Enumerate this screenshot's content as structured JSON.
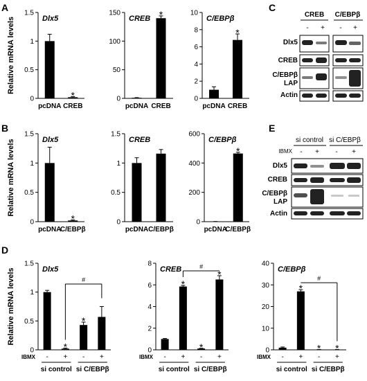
{
  "panels": [
    {
      "letter": "A"
    },
    {
      "letter": "B"
    },
    {
      "letter": "C"
    },
    {
      "letter": "D"
    },
    {
      "letter": "E"
    }
  ],
  "ylabel": "Relative mRNA levels",
  "chart_data": [
    {
      "panel": "A",
      "type": "bar",
      "title": "Dlx5",
      "categories": [
        "pcDNA",
        "CREB"
      ],
      "values": [
        1.0,
        0.02
      ],
      "errors": [
        0.12,
        0.01
      ],
      "ylim": [
        0,
        1.5
      ],
      "yticks": [
        "0",
        "0.5",
        "1",
        "1.5"
      ],
      "ylabel": "Relative mRNA levels",
      "stars": [
        "",
        "*"
      ],
      "bracket": null
    },
    {
      "panel": "A",
      "type": "bar",
      "title": "CREB",
      "categories": [
        "pcDNA",
        "CREB"
      ],
      "values": [
        1,
        140
      ],
      "errors": [
        0.3,
        4
      ],
      "ylim": [
        0,
        150
      ],
      "yticks": [
        "0",
        "50",
        "100",
        "150"
      ],
      "ylabel": "",
      "stars": [
        "",
        "*"
      ],
      "bracket": null
    },
    {
      "panel": "A",
      "type": "bar",
      "title": "C/EBPβ",
      "categories": [
        "pcDNA",
        "CREB"
      ],
      "values": [
        1.0,
        6.8
      ],
      "errors": [
        0.35,
        0.7
      ],
      "ylim": [
        0,
        10
      ],
      "yticks": [
        "0",
        "2",
        "4",
        "6",
        "8",
        "10"
      ],
      "ylabel": "",
      "stars": [
        "",
        "*"
      ],
      "bracket": null
    },
    {
      "panel": "B",
      "type": "bar",
      "title": "Dlx5",
      "categories": [
        "pcDNA",
        "C/EBPβ"
      ],
      "values": [
        1.0,
        0.02
      ],
      "errors": [
        0.27,
        0.01
      ],
      "ylim": [
        0,
        1.5
      ],
      "yticks": [
        "0",
        "0.5",
        "1",
        "1.5"
      ],
      "ylabel": "Relative mRNA levels",
      "stars": [
        "",
        "*"
      ],
      "bracket": null
    },
    {
      "panel": "B",
      "type": "bar",
      "title": "CREB",
      "categories": [
        "pcDNA",
        "C/EBPβ"
      ],
      "values": [
        1.0,
        1.16
      ],
      "errors": [
        0.09,
        0.07
      ],
      "ylim": [
        0,
        1.5
      ],
      "yticks": [
        "0",
        "0.5",
        "1",
        "1.5"
      ],
      "ylabel": "",
      "stars": [
        "",
        ""
      ],
      "bracket": null
    },
    {
      "panel": "B",
      "type": "bar",
      "title": "C/EBPβ",
      "categories": [
        "pcDNA",
        "C/EBPβ"
      ],
      "values": [
        1,
        465
      ],
      "errors": [
        0.5,
        8
      ],
      "ylim": [
        0,
        600
      ],
      "yticks": [
        "0",
        "200",
        "400",
        "600"
      ],
      "ylabel": "",
      "stars": [
        "",
        "*"
      ],
      "bracket": null
    },
    {
      "panel": "D",
      "type": "bar",
      "title": "Dlx5",
      "categories": [
        "-",
        "+",
        "-",
        "+"
      ],
      "values": [
        1.0,
        0.02,
        0.43,
        0.57
      ],
      "errors": [
        0.03,
        0.01,
        0.05,
        0.18
      ],
      "ylim": [
        0,
        1.5
      ],
      "yticks": [
        "0",
        "0.5",
        "1",
        "1.5"
      ],
      "ylabel": "Relative mRNA levels",
      "treatment": "IBMX",
      "groups": [
        "si control",
        "si C/EBPβ"
      ],
      "stars": [
        "",
        "*",
        "*",
        ""
      ],
      "bracket": {
        "from": 1,
        "to": 3,
        "level": 1.14,
        "label": "#"
      }
    },
    {
      "panel": "D",
      "type": "bar",
      "title": "CREB",
      "categories": [
        "-",
        "+",
        "-",
        "+"
      ],
      "values": [
        1.0,
        5.85,
        0.12,
        6.5
      ],
      "errors": [
        0.05,
        0.1,
        0.02,
        0.35
      ],
      "ylim": [
        0,
        8
      ],
      "yticks": [
        "0",
        "2",
        "4",
        "6",
        "8"
      ],
      "ylabel": "",
      "treatment": "IBMX",
      "groups": [
        "si control",
        "si C/EBPβ"
      ],
      "stars": [
        "",
        "*",
        "*",
        "*"
      ],
      "bracket": {
        "from": 1,
        "to": 3,
        "level": 7.3,
        "label": "#"
      }
    },
    {
      "panel": "D",
      "type": "bar",
      "title": "C/EBPβ",
      "categories": [
        "-",
        "+",
        "-",
        "+"
      ],
      "values": [
        1.0,
        27,
        0.1,
        0.1
      ],
      "errors": [
        0.3,
        0.8,
        0.05,
        0.05
      ],
      "ylim": [
        0,
        40
      ],
      "yticks": [
        "0",
        "10",
        "20",
        "30",
        "40"
      ],
      "ylabel": "",
      "treatment": "IBMX",
      "groups": [
        "si control",
        "si C/EBPβ"
      ],
      "stars": [
        "",
        "*",
        "*",
        "*"
      ],
      "bracket": {
        "from": 1,
        "to": 3,
        "level": 31,
        "label": "#"
      }
    }
  ],
  "blot_c": {
    "columns": [
      "CREB",
      "C/EBPβ"
    ],
    "treatment_signs": [
      "-",
      "+",
      "-",
      "+"
    ],
    "rows": [
      "Dlx5",
      "CREB",
      "C/EBPβ",
      "LAP",
      "Actin"
    ]
  },
  "blot_e": {
    "groups": [
      "si control",
      "si C/EBPβ"
    ],
    "treatment": "IBMX",
    "treatment_signs": [
      "-",
      "+",
      "-",
      "+"
    ],
    "rows": [
      "Dlx5",
      "CREB",
      "C/EBPβ",
      "LAP",
      "Actin"
    ]
  }
}
